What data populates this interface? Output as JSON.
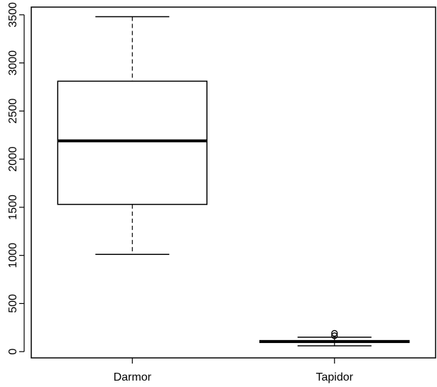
{
  "chart_data": {
    "type": "boxplot",
    "title": "",
    "xlabel": "",
    "ylabel": "",
    "ylim": [
      -65,
      3580
    ],
    "yticks": [
      0,
      500,
      1000,
      1500,
      2000,
      2500,
      3000,
      3500
    ],
    "ytick_labels": [
      "0",
      "500",
      "1000",
      "1500",
      "2000",
      "2500",
      "3000",
      "3500"
    ],
    "categories": [
      "Darmor",
      "Tapidor"
    ],
    "boxes": [
      {
        "category": "Darmor",
        "whisker_low": 1010,
        "q1": 1530,
        "median": 2190,
        "q3": 2810,
        "whisker_high": 3480,
        "outliers": []
      },
      {
        "category": "Tapidor",
        "whisker_low": 60,
        "q1": 95,
        "median": 105,
        "q3": 115,
        "whisker_high": 150,
        "outliers": [
          165,
          190
        ]
      }
    ],
    "grid": false,
    "colors": {
      "box_fill": "#ffffff",
      "stroke": "#000000"
    }
  }
}
